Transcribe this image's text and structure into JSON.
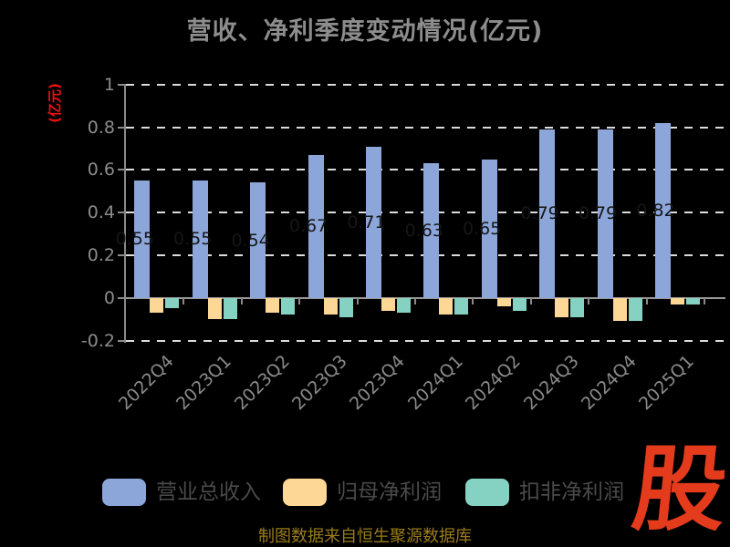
{
  "title": "营收、净利季度变动情况(亿元)",
  "y_axis": {
    "label": "(亿元)",
    "tick_labels": [
      "1",
      "0.8",
      "0.6",
      "0.4",
      "0.2",
      "0",
      "-0.2"
    ]
  },
  "footer": {
    "source_text": "制图数据来自恒生聚源数据库"
  },
  "logo": {
    "text": "股"
  },
  "colors": {
    "background": "#000000",
    "title": "#8d8d8d",
    "axis": "#8a8a8a",
    "grid": "#dcdcdc",
    "tick_label": "#8c8c8c",
    "x_label": "#8a8a8a",
    "bar_value_label": "#161616",
    "legend_text": "#4a4a4a",
    "y_axis_label": "#ee1111",
    "footer_text": "#9a7c1b",
    "logo": "#e43b1c",
    "revenue": "#8ca6d9",
    "net_profit": "#fcd795",
    "non_gaap": "#85d2c3"
  },
  "chart_data": {
    "type": "bar",
    "title": "营收、净利季度变动情况(亿元)",
    "ylabel": "(亿元)",
    "xlabel": "",
    "ylim": [
      -0.2,
      1
    ],
    "yticks": [
      1,
      0.8,
      0.6,
      0.4,
      0.2,
      0,
      -0.2
    ],
    "ytick_labels": [
      "1",
      "0.8",
      "0.6",
      "0.4",
      "0.2",
      "0",
      "-0.2"
    ],
    "grid": "horizontal-dashed",
    "legend_position": "bottom",
    "categories": [
      "2022Q4",
      "2023Q1",
      "2023Q2",
      "2023Q3",
      "2023Q4",
      "2024Q1",
      "2024Q2",
      "2024Q3",
      "2024Q4",
      "2025Q1"
    ],
    "series": [
      {
        "name": "营业总收入",
        "color": "#8ca6d9",
        "values": [
          0.55,
          0.55,
          0.54,
          0.67,
          0.71,
          0.63,
          0.65,
          0.79,
          0.79,
          0.82
        ],
        "value_labels": [
          "0.55",
          "0.55",
          "0.54",
          "0.67",
          "0.71",
          "0.63",
          "0.65",
          "0.79",
          "0.79",
          "0.82"
        ]
      },
      {
        "name": "归母净利润",
        "color": "#fcd795",
        "values": [
          -0.07,
          -0.1,
          -0.07,
          -0.08,
          -0.06,
          -0.08,
          -0.04,
          -0.09,
          -0.11,
          -0.03
        ]
      },
      {
        "name": "扣非净利润",
        "color": "#85d2c3",
        "values": [
          -0.05,
          -0.1,
          -0.08,
          -0.09,
          -0.07,
          -0.08,
          -0.06,
          -0.09,
          -0.11,
          -0.03
        ]
      }
    ]
  }
}
